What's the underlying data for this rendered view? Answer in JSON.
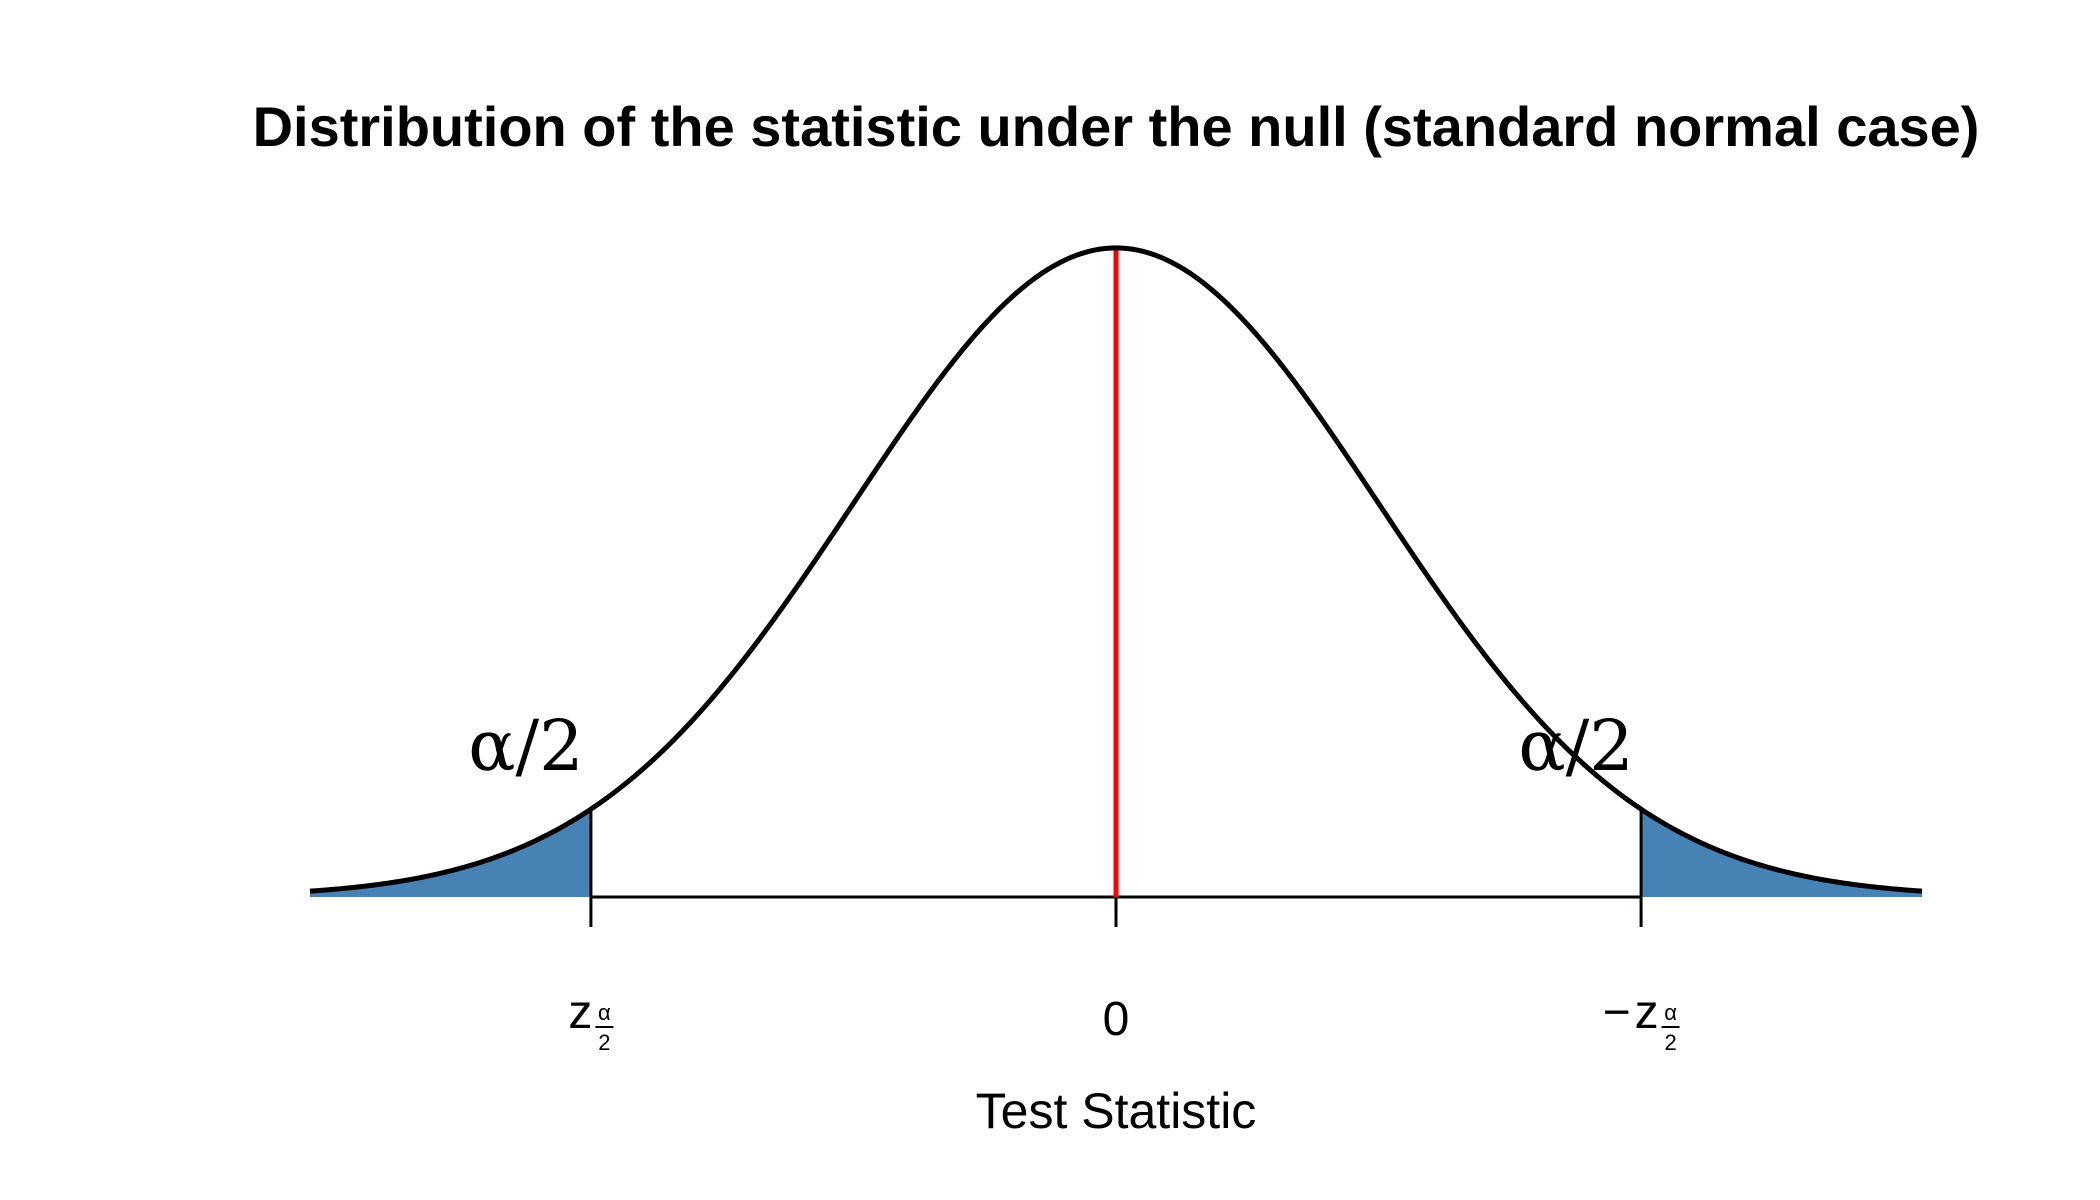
{
  "chart_data": {
    "type": "area",
    "title": "Distribution of the statistic under the null (standard normal case)",
    "xlabel": "Test Statistic",
    "ylabel": "",
    "distribution": "standard normal",
    "xlim": [
      -3.07,
      3.07
    ],
    "ylim": [
      0,
      0.3989
    ],
    "center_line": {
      "x": 0,
      "color": "#ff0000"
    },
    "critical_values": [
      -2,
      2
    ],
    "shaded_color": "#4682b4",
    "curve_color": "#000000",
    "ticks": [
      {
        "x": -2,
        "main": "z",
        "num": "α",
        "den": "2",
        "prefix": ""
      },
      {
        "x": 0,
        "main": "0",
        "num": "",
        "den": "",
        "prefix": ""
      },
      {
        "x": 2,
        "main": "z",
        "num": "α",
        "den": "2",
        "prefix": "−"
      }
    ],
    "tail_annotations": [
      {
        "x": -2,
        "text": "α/2"
      },
      {
        "x": 2,
        "text": "α/2"
      }
    ]
  }
}
